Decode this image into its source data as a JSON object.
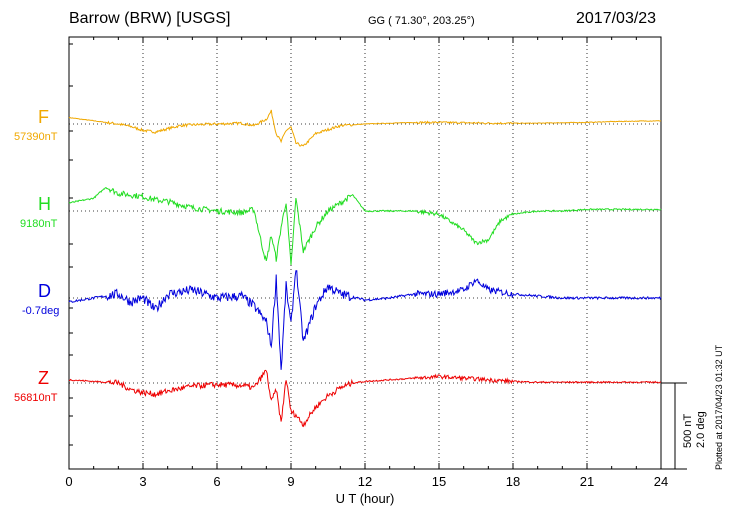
{
  "header": {
    "station": "Barrow (BRW)  [USGS]",
    "coordinates": "GG ( 71.30°, 203.25°)",
    "date": "2017/03/23"
  },
  "footer": {
    "plotted": "Plotted at 2017/04/23 01:32 UT",
    "scale_nt": "500 nT",
    "scale_deg": "2.0 deg"
  },
  "chart_data": {
    "type": "line",
    "xlabel": "U T (hour)",
    "xlim": [
      0,
      24
    ],
    "xticks": [
      "0",
      "3",
      "6",
      "9",
      "12",
      "15",
      "18",
      "21",
      "24"
    ],
    "grid": true,
    "scale": {
      "nT_per_bar": 500,
      "deg_per_bar": 2.0
    },
    "series": [
      {
        "name": "F",
        "baseline": "57390nT",
        "color": "#f0a800",
        "x": [
          0,
          1,
          2,
          2.5,
          3,
          3.5,
          4,
          4.5,
          5,
          6,
          7,
          7.5,
          8,
          8.2,
          8.4,
          8.6,
          8.8,
          9,
          9.2,
          9.5,
          10,
          11,
          12,
          13,
          14,
          15,
          16,
          17,
          18,
          19,
          20,
          21,
          22,
          23,
          24
        ],
        "y": [
          40,
          20,
          0,
          -15,
          -40,
          -50,
          -30,
          -10,
          -5,
          0,
          5,
          -10,
          30,
          80,
          -60,
          -110,
          -40,
          -20,
          -120,
          -140,
          -60,
          -10,
          0,
          5,
          10,
          10,
          8,
          5,
          5,
          5,
          8,
          10,
          15,
          18,
          20
        ]
      },
      {
        "name": "H",
        "baseline": "9180nT",
        "color": "#22dd22",
        "x": [
          0,
          1,
          1.5,
          2,
          2.5,
          3,
          3.5,
          4,
          5,
          6,
          7,
          7.5,
          7.8,
          8.0,
          8.2,
          8.4,
          8.6,
          8.8,
          9,
          9.2,
          9.5,
          10,
          10.5,
          11,
          11.5,
          12,
          13,
          14,
          15,
          16,
          16.5,
          17,
          17.5,
          18,
          19,
          20,
          21,
          22,
          23,
          24
        ],
        "y": [
          50,
          80,
          150,
          110,
          100,
          90,
          70,
          60,
          20,
          0,
          -10,
          10,
          -200,
          -320,
          -150,
          -300,
          -100,
          60,
          -350,
          80,
          -250,
          -100,
          0,
          50,
          100,
          0,
          0,
          0,
          -20,
          -120,
          -200,
          -180,
          -60,
          -20,
          0,
          0,
          10,
          10,
          10,
          10
        ]
      },
      {
        "name": "D",
        "baseline": "-0.7deg",
        "color": "#0000dd",
        "x": [
          0,
          1,
          2,
          2.5,
          3,
          3.5,
          4,
          5,
          6,
          7,
          7.5,
          8,
          8.2,
          8.4,
          8.6,
          8.8,
          9,
          9.2,
          9.5,
          10,
          10.5,
          11,
          12,
          13,
          14,
          15,
          16,
          16.5,
          17,
          18,
          19,
          20,
          21,
          22,
          23,
          24
        ],
        "y": [
          -0.1,
          0.0,
          0.1,
          -0.1,
          0.0,
          -0.3,
          0.1,
          0.2,
          0.0,
          0.05,
          -0.2,
          -0.6,
          -1.2,
          0.5,
          -1.8,
          0.3,
          -0.7,
          0.8,
          -1.1,
          -0.2,
          0.3,
          0.1,
          -0.05,
          0.0,
          0.1,
          0.1,
          0.2,
          0.45,
          0.2,
          0.1,
          0.05,
          0.0,
          0.0,
          0.0,
          0.0,
          0.0
        ]
      },
      {
        "name": "Z",
        "baseline": "56810nT",
        "color": "#ee0000",
        "x": [
          0,
          1,
          2,
          2.5,
          3,
          3.5,
          4,
          5,
          6,
          7,
          7.5,
          8,
          8.2,
          8.4,
          8.6,
          8.8,
          9,
          9.2,
          9.5,
          10,
          10.5,
          11,
          11.5,
          12,
          13,
          14,
          15,
          16,
          17,
          18,
          19,
          20,
          21,
          22,
          23,
          24
        ],
        "y": [
          20,
          10,
          0,
          -40,
          -60,
          -70,
          -50,
          -20,
          -10,
          -15,
          -30,
          80,
          -120,
          -40,
          -250,
          30,
          -180,
          -200,
          -260,
          -150,
          -80,
          -30,
          0,
          10,
          20,
          30,
          40,
          30,
          20,
          10,
          5,
          5,
          5,
          5,
          5,
          5
        ]
      }
    ]
  }
}
